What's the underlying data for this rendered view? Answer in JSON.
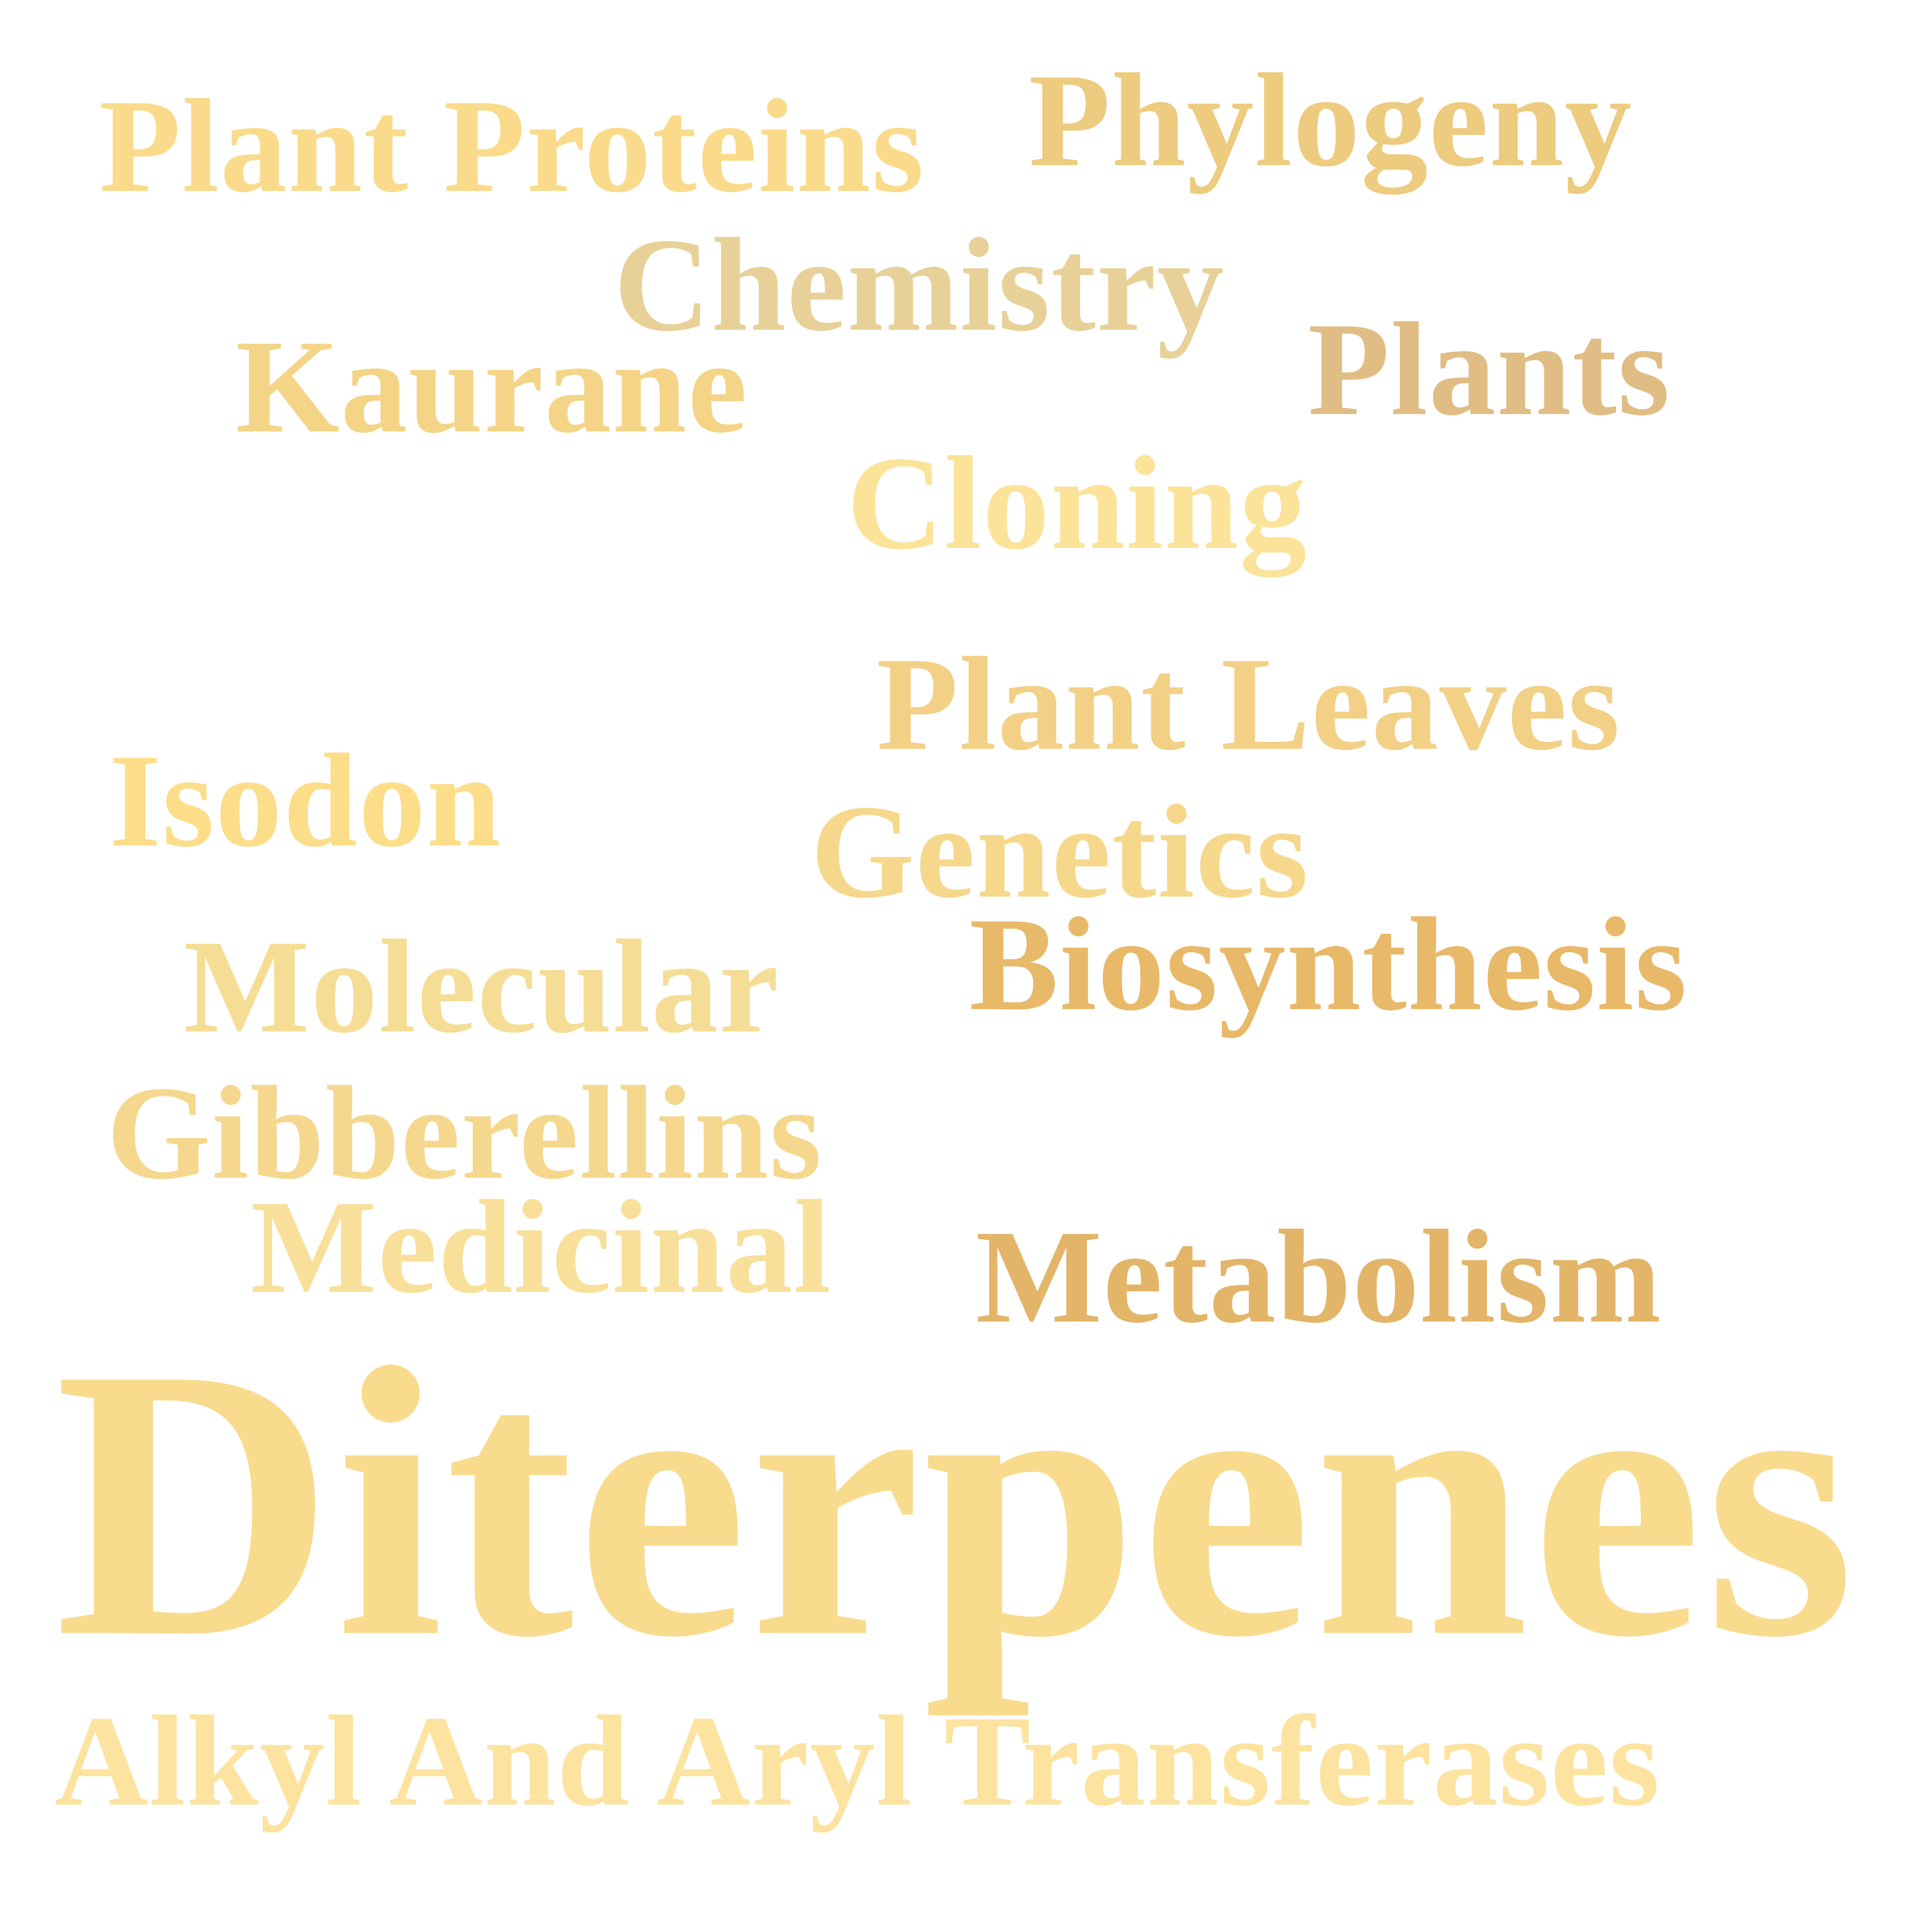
{
  "words": [
    {
      "text": "Plant Proteins",
      "color": "#F9DB8B"
    },
    {
      "text": "Phylogeny",
      "color": "#EDCB7F"
    },
    {
      "text": "Chemistry",
      "color": "#E8D198"
    },
    {
      "text": "Kaurane",
      "color": "#F4D486"
    },
    {
      "text": "Plants",
      "color": "#E0BD84"
    },
    {
      "text": "Cloning",
      "color": "#FCE39A"
    },
    {
      "text": "Plant Leaves",
      "color": "#F2D086"
    },
    {
      "text": "Isodon",
      "color": "#FCDE8A"
    },
    {
      "text": "Genetics",
      "color": "#F6D88C"
    },
    {
      "text": "Biosynthesis",
      "color": "#E8B969"
    },
    {
      "text": "Molecular",
      "color": "#F6DD95"
    },
    {
      "text": "Gibberellins",
      "color": "#F5D78E"
    },
    {
      "text": "Medicinal",
      "color": "#F8E09A"
    },
    {
      "text": "Metabolism",
      "color": "#E3B569"
    },
    {
      "text": "Diterpenes",
      "color": "#F9DB8E"
    },
    {
      "text": "Alkyl And Aryl Transferases",
      "color": "#FCE3A0"
    }
  ]
}
